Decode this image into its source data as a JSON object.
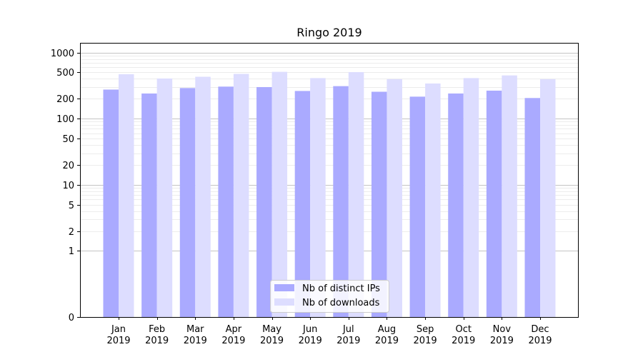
{
  "chart_data": {
    "type": "bar",
    "title": "Ringo 2019",
    "xlabel": "",
    "ylabel": "",
    "y_scale": "symlog",
    "y_ticks": [
      0,
      1,
      2,
      5,
      10,
      20,
      50,
      100,
      200,
      500,
      1000
    ],
    "y_tick_labels": [
      "0",
      "1",
      "2",
      "5",
      "10",
      "20",
      "50",
      "100",
      "200",
      "500",
      "1000"
    ],
    "ylim": [
      0,
      1400
    ],
    "grid": true,
    "legend_position": "bottom-center",
    "categories": [
      [
        "Jan",
        "2019"
      ],
      [
        "Feb",
        "2019"
      ],
      [
        "Mar",
        "2019"
      ],
      [
        "Apr",
        "2019"
      ],
      [
        "May",
        "2019"
      ],
      [
        "Jun",
        "2019"
      ],
      [
        "Jul",
        "2019"
      ],
      [
        "Aug",
        "2019"
      ],
      [
        "Sep",
        "2019"
      ],
      [
        "Oct",
        "2019"
      ],
      [
        "Nov",
        "2019"
      ],
      [
        "Dec",
        "2019"
      ]
    ],
    "series": [
      {
        "name": "Nb of distinct IPs",
        "color": "#aaaaff",
        "values": [
          275,
          240,
          290,
          305,
          300,
          262,
          310,
          255,
          215,
          240,
          265,
          205
        ]
      },
      {
        "name": "Nb of downloads",
        "color": "#ddddff",
        "values": [
          470,
          405,
          430,
          475,
          510,
          410,
          505,
          395,
          340,
          410,
          450,
          395
        ]
      }
    ]
  },
  "colors": {
    "axis": "#000000",
    "grid_major": "#b0b0b0",
    "grid_minor": "#e6e6e6"
  }
}
